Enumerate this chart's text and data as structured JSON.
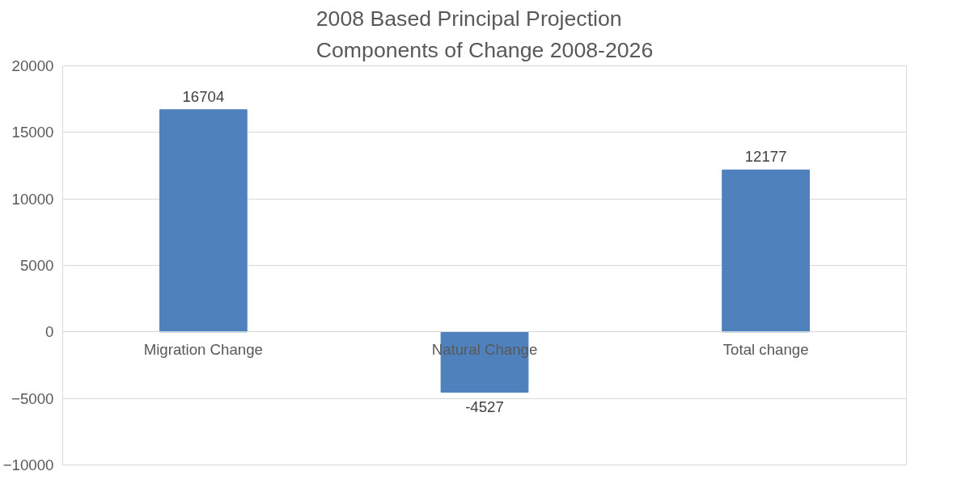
{
  "chart_data": {
    "type": "bar",
    "title": "2008 Based Principal Projection\nComponents of Change 2008-2026",
    "categories": [
      "Migration Change",
      "Natural Change",
      "Total change"
    ],
    "values": [
      16704,
      -4527,
      12177
    ],
    "color": "#4f81bd",
    "ylim": [
      -10000,
      20000
    ],
    "yticks": [
      -10000,
      -5000,
      0,
      5000,
      10000,
      15000,
      20000
    ],
    "grid": "y",
    "data_labels": true
  }
}
